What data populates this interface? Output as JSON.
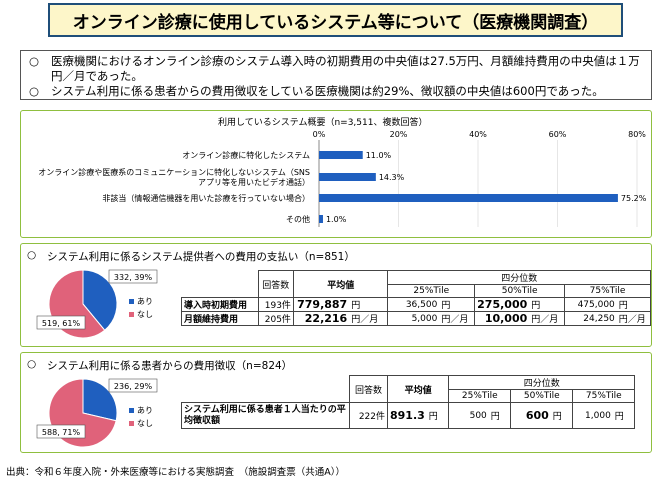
{
  "title": "オンライン診療に使用しているシステム等について（医療機関調査）",
  "summary": [
    {
      "bullet": "○",
      "text": "医療機関におけるオンライン診療のシステム導入時の初期費用の中央値は27.5万円、月額維持費用の中央値は１万円／月であった。"
    },
    {
      "bullet": "○",
      "text": "システム利用に係る患者からの費用徴収をしている医療機関は約29%、徴収額の中央値は600円であった。"
    }
  ],
  "chart_data": [
    {
      "type": "bar",
      "orientation": "horizontal",
      "title": "利用しているシステム概要（n=3,511、複数回答）",
      "categories": [
        "オンライン診療に特化したシステム",
        "オンライン診療や医療系のコミュニケーションに特化しないシステム（SNSアプリ等を用いたビデオ通話）",
        "非該当（情報通信機器を用いた診療を行っていない場合）",
        "その他"
      ],
      "category_lines": [
        [
          "オンライン診療に特化したシステム"
        ],
        [
          "オンライン診療や医療系のコミュニケーションに特化しないシステム（SNS",
          "アプリ等を用いたビデオ通話）"
        ],
        [
          "非該当（情報通信機器を用いた診療を行っていない場合）"
        ],
        [
          "その他"
        ]
      ],
      "values": [
        11.0,
        14.3,
        75.2,
        1.0
      ],
      "value_labels": [
        "11.0%",
        "14.3%",
        "75.2%",
        "1.0%"
      ],
      "xlim": [
        0,
        80
      ],
      "xticks": [
        0,
        20,
        40,
        60,
        80
      ],
      "xtick_labels": [
        "0%",
        "20%",
        "40%",
        "60%",
        "80%"
      ],
      "bar_color": "#1f5fbf"
    },
    {
      "type": "pie",
      "title": "システム利用に係るシステム提供者への費用の支払い（n=851）",
      "labels": [
        "あり",
        "なし"
      ],
      "values": [
        332,
        519
      ],
      "slice_labels": [
        "332, 39%",
        "519, 61%"
      ],
      "colors": [
        "#1f5fbf",
        "#e0627a"
      ]
    },
    {
      "type": "pie",
      "title": "システム利用に係る患者からの費用徴収（n=824）",
      "labels": [
        "あり",
        "なし"
      ],
      "values": [
        236,
        588
      ],
      "slice_labels": [
        "236, 29%",
        "588, 71%"
      ],
      "colors": [
        "#1f5fbf",
        "#e0627a"
      ]
    }
  ],
  "panel2": {
    "bullet": "○",
    "heading": "システム利用に係るシステム提供者への費用の支払い（n=851）",
    "legend": [
      "あり",
      "なし"
    ],
    "table": {
      "count_header": "回答数",
      "mean_header": "平均値",
      "quartile_header": "四分位数",
      "quartiles": [
        "25%Tile",
        "50%Tile",
        "75%Tile"
      ],
      "rows": [
        {
          "label": "導入時初期費用",
          "count": "193件",
          "mean": "779,887",
          "mean_unit": "円",
          "q25": "36,500",
          "q25_unit": "円",
          "q50": "275,000",
          "q50_unit": "円",
          "q75": "475,000",
          "q75_unit": "円"
        },
        {
          "label": "月額維持費用",
          "count": "205件",
          "mean": "22,216",
          "mean_unit": "円／月",
          "q25": "5,000",
          "q25_unit": "円／月",
          "q50": "10,000",
          "q50_unit": "円／月",
          "q75": "24,250",
          "q75_unit": "円／月"
        }
      ]
    }
  },
  "panel3": {
    "bullet": "○",
    "heading": "システム利用に係る患者からの費用徴収（n=824）",
    "legend": [
      "あり",
      "なし"
    ],
    "table": {
      "count_header": "回答数",
      "mean_header": "平均値",
      "quartile_header": "四分位数",
      "quartiles": [
        "25%Tile",
        "50%Tile",
        "75%Tile"
      ],
      "row": {
        "label": "システム利用に係る患者１人当たりの平均徴収額",
        "count": "222件",
        "mean": "891.3",
        "mean_unit": "円",
        "q25": "500",
        "q25_unit": "円",
        "q50": "600",
        "q50_unit": "円",
        "q75": "1,000",
        "q75_unit": "円"
      }
    }
  },
  "source": "出典：令和６年度入院・外来医療等における実態調査　（施設調査票（共通A））"
}
